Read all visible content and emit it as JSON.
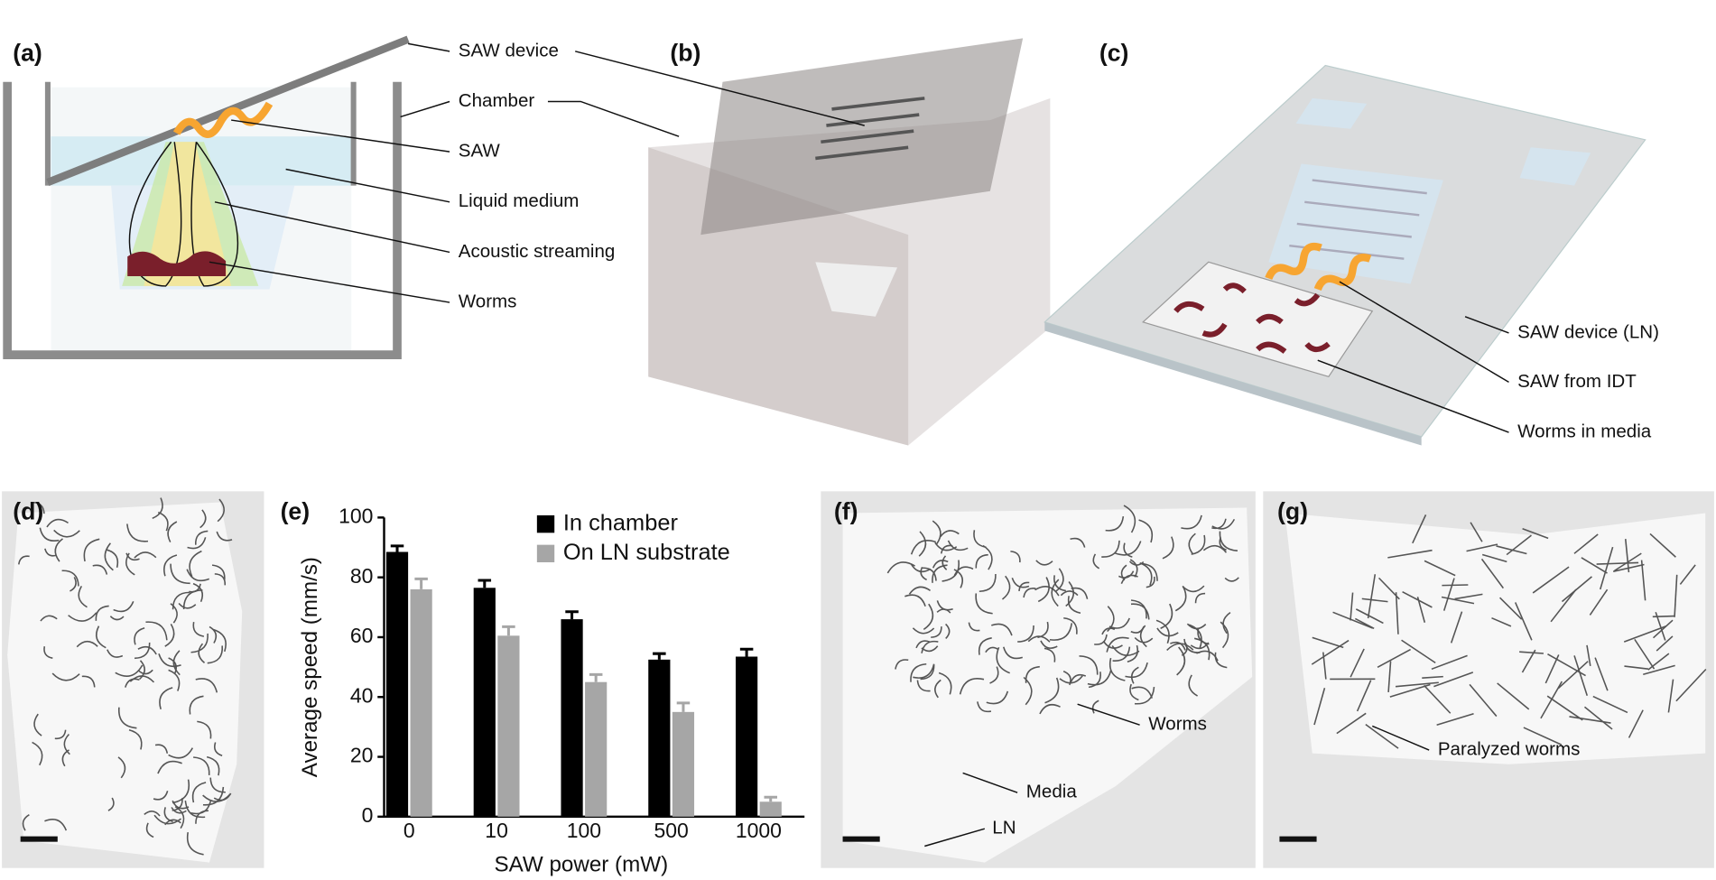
{
  "panels": {
    "a": "(a)",
    "b": "(b)",
    "c": "(c)",
    "d": "(d)",
    "e": "(e)",
    "f": "(f)",
    "g": "(g)"
  },
  "annotations_a": [
    "SAW device",
    "Chamber",
    "SAW",
    "Liquid medium",
    "Acoustic streaming",
    "Worms"
  ],
  "annotations_c": [
    "SAW device (LN)",
    "SAW from IDT",
    "Worms in media"
  ],
  "annotations_f": [
    "Worms",
    "Media",
    "LN"
  ],
  "annotations_g": [
    "Paralyzed worms"
  ],
  "chart_data": {
    "type": "bar",
    "x_label": "SAW power (mW)",
    "y_label": "Average speed (mm/s)",
    "categories": [
      "0",
      "10",
      "100",
      "500",
      "1000"
    ],
    "series": [
      {
        "name": "In chamber",
        "color": "#000000",
        "values": [
          88.5,
          76.5,
          66,
          52.5,
          53.5
        ],
        "errors": [
          2,
          2.5,
          2.5,
          2,
          2.5
        ]
      },
      {
        "name": "On LN substrate",
        "color": "#a6a6a6",
        "values": [
          76,
          60.5,
          45,
          35,
          5
        ],
        "errors": [
          3.5,
          3,
          2.5,
          3,
          1.5
        ]
      }
    ],
    "ylim": [
      0,
      100
    ],
    "yticks": [
      0,
      20,
      40,
      60,
      80,
      100
    ],
    "legend": "top-right"
  }
}
